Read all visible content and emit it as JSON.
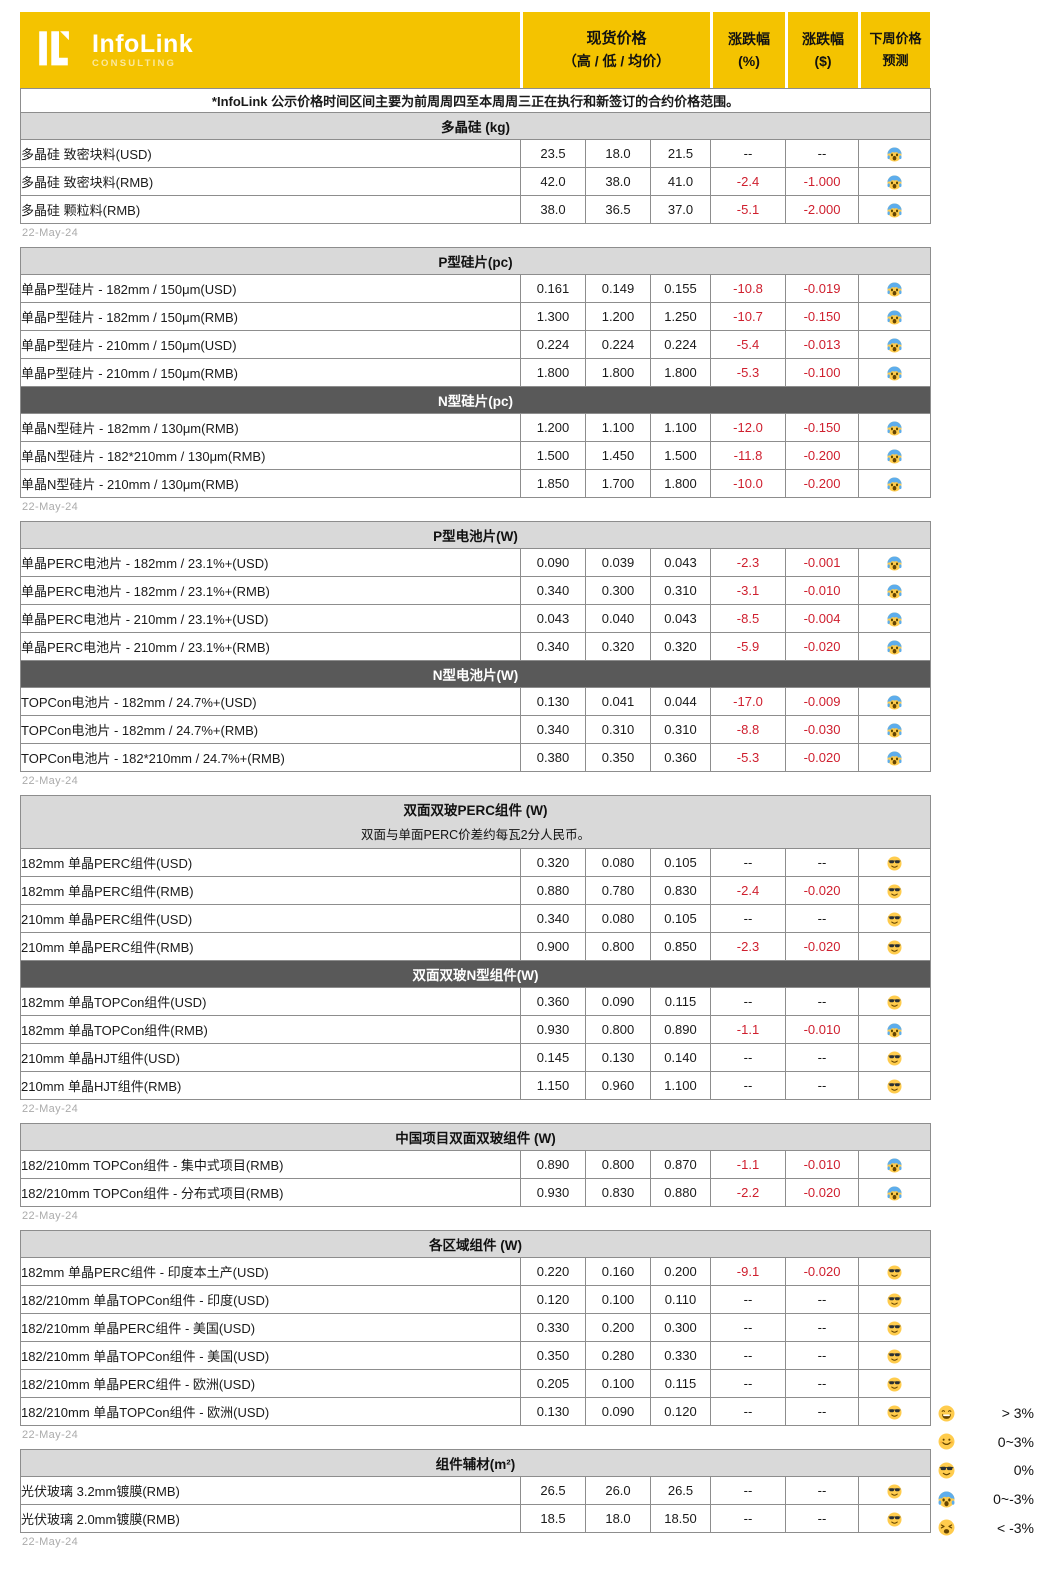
{
  "brand": {
    "name": "InfoLink",
    "sub": "CONSULTING"
  },
  "colors": {
    "brand_yellow": "#F4C300",
    "negative_red": "#CF1F2E",
    "section_dark": "#595959",
    "section_light": "#D9D9D9"
  },
  "columns": {
    "spot_line1": "现货价格",
    "spot_line2": "（高 / 低 / 均价）",
    "pct_line1": "涨跌幅",
    "pct_line2": "(%)",
    "usd_line1": "涨跌幅",
    "usd_line2": "($)",
    "forecast_line1": "下周价格",
    "forecast_line2": "预测"
  },
  "top_note": "*InfoLink 公示价格时间区间主要为前周周四至本周周三正在执行和新签订的合约价格范围。",
  "groups": [
    {
      "lead_note": true,
      "date": "22-May-24",
      "sections": [
        {
          "title": "多晶硅 (kg)",
          "variant": "light",
          "rows": [
            {
              "label": "多晶硅 致密块料(USD)",
              "high": "23.5",
              "low": "18.0",
              "avg": "21.5",
              "pct": "--",
              "chg": "--",
              "forecast": "scream"
            },
            {
              "label": "多晶硅 致密块料(RMB)",
              "high": "42.0",
              "low": "38.0",
              "avg": "41.0",
              "pct": "-2.4",
              "chg": "-1.000",
              "forecast": "scream"
            },
            {
              "label": "多晶硅 颗粒料(RMB)",
              "high": "38.0",
              "low": "36.5",
              "avg": "37.0",
              "pct": "-5.1",
              "chg": "-2.000",
              "forecast": "scream"
            }
          ]
        }
      ]
    },
    {
      "date": "22-May-24",
      "sections": [
        {
          "title": "P型硅片(pc)",
          "variant": "light",
          "rows": [
            {
              "label": "单晶P型硅片 - 182mm / 150μm(USD)",
              "high": "0.161",
              "low": "0.149",
              "avg": "0.155",
              "pct": "-10.8",
              "chg": "-0.019",
              "forecast": "scream"
            },
            {
              "label": "单晶P型硅片 - 182mm / 150μm(RMB)",
              "high": "1.300",
              "low": "1.200",
              "avg": "1.250",
              "pct": "-10.7",
              "chg": "-0.150",
              "forecast": "scream"
            },
            {
              "label": "单晶P型硅片 - 210mm / 150μm(USD)",
              "high": "0.224",
              "low": "0.224",
              "avg": "0.224",
              "pct": "-5.4",
              "chg": "-0.013",
              "forecast": "scream"
            },
            {
              "label": "单晶P型硅片 - 210mm / 150μm(RMB)",
              "high": "1.800",
              "low": "1.800",
              "avg": "1.800",
              "pct": "-5.3",
              "chg": "-0.100",
              "forecast": "scream"
            }
          ]
        },
        {
          "title": "N型硅片(pc)",
          "variant": "dark",
          "rows": [
            {
              "label": "单晶N型硅片 - 182mm / 130μm(RMB)",
              "high": "1.200",
              "low": "1.100",
              "avg": "1.100",
              "pct": "-12.0",
              "chg": "-0.150",
              "forecast": "scream"
            },
            {
              "label": "单晶N型硅片 - 182*210mm / 130μm(RMB)",
              "high": "1.500",
              "low": "1.450",
              "avg": "1.500",
              "pct": "-11.8",
              "chg": "-0.200",
              "forecast": "scream"
            },
            {
              "label": "单晶N型硅片 - 210mm / 130μm(RMB)",
              "high": "1.850",
              "low": "1.700",
              "avg": "1.800",
              "pct": "-10.0",
              "chg": "-0.200",
              "forecast": "scream"
            }
          ]
        }
      ]
    },
    {
      "date": "22-May-24",
      "sections": [
        {
          "title": "P型电池片(W)",
          "variant": "light",
          "rows": [
            {
              "label": "单晶PERC电池片 - 182mm / 23.1%+(USD)",
              "high": "0.090",
              "low": "0.039",
              "avg": "0.043",
              "pct": "-2.3",
              "chg": "-0.001",
              "forecast": "scream"
            },
            {
              "label": "单晶PERC电池片 - 182mm / 23.1%+(RMB)",
              "high": "0.340",
              "low": "0.300",
              "avg": "0.310",
              "pct": "-3.1",
              "chg": "-0.010",
              "forecast": "scream"
            },
            {
              "label": "单晶PERC电池片 - 210mm / 23.1%+(USD)",
              "high": "0.043",
              "low": "0.040",
              "avg": "0.043",
              "pct": "-8.5",
              "chg": "-0.004",
              "forecast": "scream"
            },
            {
              "label": "单晶PERC电池片 - 210mm / 23.1%+(RMB)",
              "high": "0.340",
              "low": "0.320",
              "avg": "0.320",
              "pct": "-5.9",
              "chg": "-0.020",
              "forecast": "scream"
            }
          ]
        },
        {
          "title": "N型电池片(W)",
          "variant": "dark",
          "rows": [
            {
              "label": "TOPCon电池片 - 182mm / 24.7%+(USD)",
              "high": "0.130",
              "low": "0.041",
              "avg": "0.044",
              "pct": "-17.0",
              "chg": "-0.009",
              "forecast": "scream"
            },
            {
              "label": "TOPCon电池片 - 182mm / 24.7%+(RMB)",
              "high": "0.340",
              "low": "0.310",
              "avg": "0.310",
              "pct": "-8.8",
              "chg": "-0.030",
              "forecast": "scream"
            },
            {
              "label": "TOPCon电池片 - 182*210mm / 24.7%+(RMB)",
              "high": "0.380",
              "low": "0.350",
              "avg": "0.360",
              "pct": "-5.3",
              "chg": "-0.020",
              "forecast": "scream"
            }
          ]
        }
      ]
    },
    {
      "date": "22-May-24",
      "sections": [
        {
          "title": "双面双玻PERC组件 (W)",
          "variant": "light",
          "note": "双面与单面PERC价差约每瓦2分人民币。",
          "rows": [
            {
              "label": "182mm 单晶PERC组件(USD)",
              "high": "0.320",
              "low": "0.080",
              "avg": "0.105",
              "pct": "--",
              "chg": "--",
              "forecast": "cool"
            },
            {
              "label": "182mm 单晶PERC组件(RMB)",
              "high": "0.880",
              "low": "0.780",
              "avg": "0.830",
              "pct": "-2.4",
              "chg": "-0.020",
              "forecast": "cool"
            },
            {
              "label": "210mm 单晶PERC组件(USD)",
              "high": "0.340",
              "low": "0.080",
              "avg": "0.105",
              "pct": "--",
              "chg": "--",
              "forecast": "cool"
            },
            {
              "label": "210mm 单晶PERC组件(RMB)",
              "high": "0.900",
              "low": "0.800",
              "avg": "0.850",
              "pct": "-2.3",
              "chg": "-0.020",
              "forecast": "cool"
            }
          ]
        },
        {
          "title": "双面双玻N型组件(W)",
          "variant": "dark",
          "rows": [
            {
              "label": "182mm 单晶TOPCon组件(USD)",
              "high": "0.360",
              "low": "0.090",
              "avg": "0.115",
              "pct": "--",
              "chg": "--",
              "forecast": "cool"
            },
            {
              "label": "182mm 单晶TOPCon组件(RMB)",
              "high": "0.930",
              "low": "0.800",
              "avg": "0.890",
              "pct": "-1.1",
              "chg": "-0.010",
              "forecast": "scream"
            },
            {
              "label": "210mm 单晶HJT组件(USD)",
              "high": "0.145",
              "low": "0.130",
              "avg": "0.140",
              "pct": "--",
              "chg": "--",
              "forecast": "cool"
            },
            {
              "label": "210mm 单晶HJT组件(RMB)",
              "high": "1.150",
              "low": "0.960",
              "avg": "1.100",
              "pct": "--",
              "chg": "--",
              "forecast": "cool"
            }
          ]
        }
      ]
    },
    {
      "date": "22-May-24",
      "sections": [
        {
          "title": "中国项目双面双玻组件 (W)",
          "variant": "light",
          "rows": [
            {
              "label": "182/210mm TOPCon组件 - 集中式项目(RMB)",
              "high": "0.890",
              "low": "0.800",
              "avg": "0.870",
              "pct": "-1.1",
              "chg": "-0.010",
              "forecast": "scream"
            },
            {
              "label": "182/210mm TOPCon组件 - 分布式项目(RMB)",
              "high": "0.930",
              "low": "0.830",
              "avg": "0.880",
              "pct": "-2.2",
              "chg": "-0.020",
              "forecast": "scream"
            }
          ]
        }
      ]
    },
    {
      "date": "22-May-24",
      "sections": [
        {
          "title": "各区域组件 (W)",
          "variant": "light",
          "rows": [
            {
              "label": "182mm 单晶PERC组件 - 印度本土产(USD)",
              "high": "0.220",
              "low": "0.160",
              "avg": "0.200",
              "pct": "-9.1",
              "chg": "-0.020",
              "forecast": "cool"
            },
            {
              "label": "182/210mm 单晶TOPCon组件 - 印度(USD)",
              "high": "0.120",
              "low": "0.100",
              "avg": "0.110",
              "pct": "--",
              "chg": "--",
              "forecast": "cool"
            },
            {
              "label": "182/210mm 单晶PERC组件 - 美国(USD)",
              "high": "0.330",
              "low": "0.200",
              "avg": "0.300",
              "pct": "--",
              "chg": "--",
              "forecast": "cool"
            },
            {
              "label": "182/210mm 单晶TOPCon组件 - 美国(USD)",
              "high": "0.350",
              "low": "0.280",
              "avg": "0.330",
              "pct": "--",
              "chg": "--",
              "forecast": "cool"
            },
            {
              "label": "182/210mm 单晶PERC组件 - 欧洲(USD)",
              "high": "0.205",
              "low": "0.100",
              "avg": "0.115",
              "pct": "--",
              "chg": "--",
              "forecast": "cool"
            },
            {
              "label": "182/210mm 单晶TOPCon组件 - 欧洲(USD)",
              "high": "0.130",
              "low": "0.090",
              "avg": "0.120",
              "pct": "--",
              "chg": "--",
              "forecast": "cool"
            }
          ]
        }
      ]
    },
    {
      "date": "22-May-24",
      "sections": [
        {
          "title": "组件辅材(m²)",
          "variant": "light",
          "rows": [
            {
              "label": "光伏玻璃 3.2mm镀膜(RMB)",
              "high": "26.5",
              "low": "26.0",
              "avg": "26.5",
              "pct": "--",
              "chg": "--",
              "forecast": "cool"
            },
            {
              "label": "光伏玻璃 2.0mm镀膜(RMB)",
              "high": "18.5",
              "low": "18.0",
              "avg": "18.50",
              "pct": "--",
              "chg": "--",
              "forecast": "cool"
            }
          ]
        }
      ]
    }
  ],
  "legend": [
    {
      "icon": "grin",
      "label": "> 3%"
    },
    {
      "icon": "smile",
      "label": "0~3%"
    },
    {
      "icon": "cool",
      "label": "0%"
    },
    {
      "icon": "scream",
      "label": "0~-3%"
    },
    {
      "icon": "tired",
      "label": "< -3%"
    }
  ]
}
